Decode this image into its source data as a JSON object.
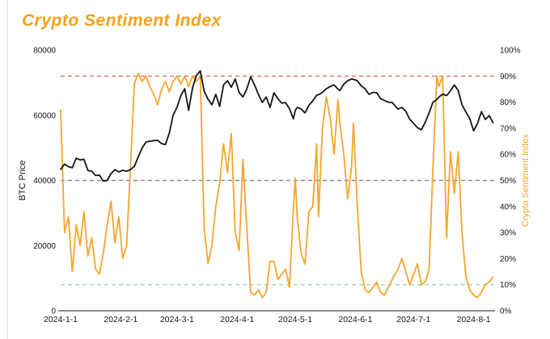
{
  "title": "Crypto Sentiment Index",
  "colors": {
    "title": "#F5A11B",
    "btc_line": "#141414",
    "sentiment_line": "#F5A52B",
    "ref_90": "#E57373",
    "ref_50": "#8C8C8C",
    "ref_10": "#A8D5B5",
    "axis_line": "#8C8C8C",
    "tick_text": "#141414",
    "left_axis_title": "#141414",
    "right_axis_title": "#F5A52B",
    "background": "#FFFFFF"
  },
  "chart_data": {
    "type": "line",
    "title": "Crypto Sentiment Index",
    "grid": "off",
    "x_domain": [
      "2024-01-01",
      "2024-08-12"
    ],
    "left_axis": {
      "label": "BTC Price",
      "max": 80000,
      "ticks": [
        {
          "label": "0",
          "value": 0
        },
        {
          "label": "20000",
          "value": 20000
        },
        {
          "label": "40000",
          "value": 40000
        },
        {
          "label": "60000",
          "value": 60000
        },
        {
          "label": "80000",
          "value": 80000
        }
      ]
    },
    "right_axis": {
      "label": "Crypto Sentiment Index",
      "max": 100,
      "ticks": [
        {
          "label": "0%",
          "value": 0
        },
        {
          "label": "10%",
          "value": 10
        },
        {
          "label": "20%",
          "value": 20
        },
        {
          "label": "30%",
          "value": 30
        },
        {
          "label": "40%",
          "value": 40
        },
        {
          "label": "50%",
          "value": 50
        },
        {
          "label": "60%",
          "value": 60
        },
        {
          "label": "70%",
          "value": 70
        },
        {
          "label": "80%",
          "value": 80
        },
        {
          "label": "90%",
          "value": 90
        },
        {
          "label": "100%",
          "value": 100
        }
      ]
    },
    "x_ticks": [
      {
        "label": "2024-1-1",
        "date": "2024-01-01"
      },
      {
        "label": "2024-2-1",
        "date": "2024-02-01"
      },
      {
        "label": "2024-3-1",
        "date": "2024-03-01"
      },
      {
        "label": "2024-4-1",
        "date": "2024-04-01"
      },
      {
        "label": "2024-5-1",
        "date": "2024-05-01"
      },
      {
        "label": "2024-6-1",
        "date": "2024-06-01"
      },
      {
        "label": "2024-7-1",
        "date": "2024-07-01"
      },
      {
        "label": "2024-8-1",
        "date": "2024-08-01"
      }
    ],
    "reference_lines": [
      {
        "axis": "right",
        "value": 90,
        "style": "dashed",
        "color": "#E57373"
      },
      {
        "axis": "right",
        "value": 50,
        "style": "dashed",
        "color": "#8C8C8C"
      },
      {
        "axis": "right",
        "value": 10,
        "style": "dashed",
        "color": "#A8D5B5"
      }
    ],
    "x": [
      "2024-01-01",
      "2024-01-03",
      "2024-01-05",
      "2024-01-07",
      "2024-01-09",
      "2024-01-11",
      "2024-01-13",
      "2024-01-15",
      "2024-01-17",
      "2024-01-19",
      "2024-01-21",
      "2024-01-23",
      "2024-01-25",
      "2024-01-27",
      "2024-01-29",
      "2024-01-31",
      "2024-02-02",
      "2024-02-04",
      "2024-02-06",
      "2024-02-08",
      "2024-02-10",
      "2024-02-12",
      "2024-02-14",
      "2024-02-16",
      "2024-02-18",
      "2024-02-20",
      "2024-02-22",
      "2024-02-24",
      "2024-02-26",
      "2024-02-28",
      "2024-03-01",
      "2024-03-03",
      "2024-03-05",
      "2024-03-07",
      "2024-03-09",
      "2024-03-11",
      "2024-03-13",
      "2024-03-15",
      "2024-03-17",
      "2024-03-19",
      "2024-03-21",
      "2024-03-23",
      "2024-03-25",
      "2024-03-27",
      "2024-03-29",
      "2024-03-31",
      "2024-04-02",
      "2024-04-04",
      "2024-04-06",
      "2024-04-08",
      "2024-04-10",
      "2024-04-12",
      "2024-04-14",
      "2024-04-16",
      "2024-04-18",
      "2024-04-20",
      "2024-04-22",
      "2024-04-24",
      "2024-04-26",
      "2024-04-28",
      "2024-04-30",
      "2024-05-01",
      "2024-05-02",
      "2024-05-04",
      "2024-05-06",
      "2024-05-08",
      "2024-05-10",
      "2024-05-12",
      "2024-05-13",
      "2024-05-15",
      "2024-05-17",
      "2024-05-19",
      "2024-05-21",
      "2024-05-23",
      "2024-05-24",
      "2024-05-26",
      "2024-05-28",
      "2024-05-30",
      "2024-05-31",
      "2024-06-02",
      "2024-06-04",
      "2024-06-06",
      "2024-06-08",
      "2024-06-10",
      "2024-06-12",
      "2024-06-14",
      "2024-06-16",
      "2024-06-18",
      "2024-06-20",
      "2024-06-23",
      "2024-06-25",
      "2024-06-27",
      "2024-06-29",
      "2024-07-01",
      "2024-07-03",
      "2024-07-05",
      "2024-07-07",
      "2024-07-09",
      "2024-07-11",
      "2024-07-13",
      "2024-07-14",
      "2024-07-16",
      "2024-07-18",
      "2024-07-20",
      "2024-07-22",
      "2024-07-24",
      "2024-07-26",
      "2024-07-28",
      "2024-07-30",
      "2024-08-01",
      "2024-08-03",
      "2024-08-05",
      "2024-08-07",
      "2024-08-09",
      "2024-08-11"
    ],
    "series": [
      {
        "name": "BTC Price",
        "axis": "left",
        "color": "#141414",
        "values": [
          43400,
          45000,
          44200,
          43900,
          46800,
          46300,
          46500,
          43100,
          42800,
          41500,
          41600,
          39800,
          40000,
          42100,
          43300,
          42600,
          43100,
          42800,
          43300,
          44300,
          47200,
          49900,
          51800,
          52000,
          52200,
          52300,
          51300,
          51000,
          54500,
          60000,
          62400,
          66000,
          68100,
          61500,
          68300,
          72200,
          73600,
          67400,
          64900,
          63200,
          66400,
          62700,
          69300,
          70600,
          68600,
          71100,
          67000,
          65600,
          68000,
          71800,
          69300,
          66400,
          63900,
          65600,
          62400,
          66900,
          65100,
          63700,
          63900,
          62000,
          58900,
          61500,
          62400,
          61900,
          60700,
          63000,
          64400,
          66100,
          66300,
          67000,
          68100,
          68800,
          69300,
          68000,
          67600,
          69500,
          70600,
          71100,
          71000,
          70600,
          69000,
          68100,
          66400,
          67000,
          66900,
          65100,
          64500,
          64000,
          63900,
          61900,
          62400,
          61200,
          58800,
          57500,
          56200,
          55500,
          57800,
          60700,
          64000,
          64800,
          65500,
          66500,
          66000,
          67500,
          69300,
          67600,
          63200,
          61000,
          59000,
          55200,
          57500,
          61100,
          58700,
          59900,
          57700
        ]
      },
      {
        "name": "Crypto Sentiment Index",
        "axis": "right",
        "color": "#F5A52B",
        "values": [
          77,
          30,
          36,
          15,
          33,
          25,
          38,
          21,
          28,
          16,
          14,
          22,
          33,
          42,
          26,
          36,
          20,
          25,
          55,
          87,
          91,
          88,
          90,
          86,
          83,
          79,
          85,
          88,
          84,
          88,
          90,
          87,
          90,
          86,
          90,
          88,
          90,
          32,
          18,
          25,
          40,
          49,
          64,
          53,
          68,
          30,
          23,
          58,
          32,
          7,
          6,
          8,
          5,
          7,
          19,
          19,
          12,
          14,
          16,
          9,
          39,
          51,
          36,
          22,
          18,
          38,
          40,
          64,
          36,
          70,
          82,
          74,
          60,
          81,
          72,
          60,
          43,
          55,
          72,
          40,
          15,
          8,
          7,
          9,
          11,
          7,
          6,
          9,
          12,
          16,
          20,
          15,
          10,
          14,
          18,
          10,
          11,
          16,
          55,
          90,
          86,
          90,
          28,
          61,
          45,
          61,
          30,
          13,
          8,
          6,
          5,
          7,
          10,
          11,
          13
        ]
      }
    ]
  }
}
